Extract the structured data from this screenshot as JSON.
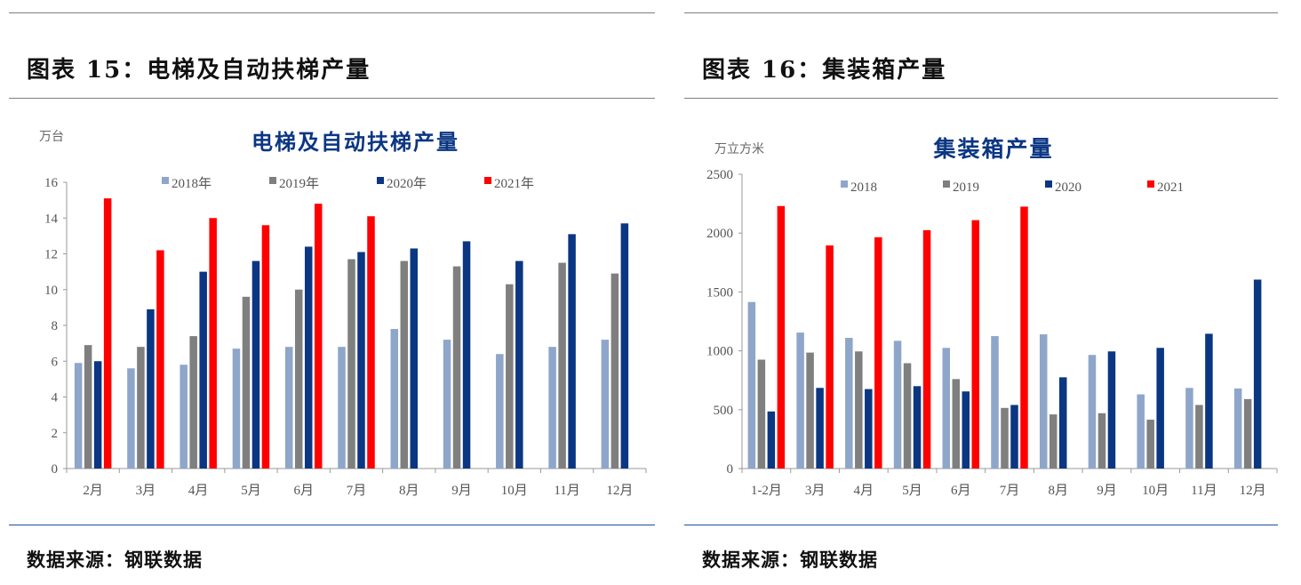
{
  "panels": [
    {
      "header": "图表 15：电梯及自动扶梯产量",
      "source": "数据来源：钢联数据"
    },
    {
      "header": "图表 16：集装箱产量",
      "source": "数据来源：钢联数据"
    }
  ],
  "colors": {
    "2018": "#8ea6c9",
    "2019": "#7f7f7f",
    "2020": "#0b3682",
    "2021": "#ff0000",
    "title": "#0b3682"
  },
  "chart_data": [
    {
      "type": "bar",
      "title": "电梯及自动扶梯产量",
      "ylabel": "万台",
      "xlabel": "",
      "ylim": [
        0,
        16
      ],
      "yticks": [
        0,
        2,
        4,
        6,
        8,
        10,
        12,
        14,
        16
      ],
      "legend": "top",
      "categories": [
        "2月",
        "3月",
        "4月",
        "5月",
        "6月",
        "7月",
        "8月",
        "9月",
        "10月",
        "11月",
        "12月"
      ],
      "series": [
        {
          "name": "2018年",
          "values": [
            5.9,
            5.6,
            5.8,
            6.7,
            6.8,
            6.8,
            7.8,
            7.2,
            6.4,
            6.8,
            7.2
          ]
        },
        {
          "name": "2019年",
          "values": [
            6.9,
            6.8,
            7.4,
            9.6,
            10.0,
            11.7,
            11.6,
            11.3,
            10.3,
            11.5,
            10.9
          ]
        },
        {
          "name": "2020年",
          "values": [
            6.0,
            8.9,
            11.0,
            11.6,
            12.4,
            12.1,
            12.3,
            12.7,
            11.6,
            13.1,
            13.7
          ]
        },
        {
          "name": "2021年",
          "values": [
            15.1,
            12.2,
            14.0,
            13.6,
            14.8,
            14.1,
            null,
            null,
            null,
            null,
            null
          ]
        }
      ]
    },
    {
      "type": "bar",
      "title": "集装箱产量",
      "ylabel": "万立方米",
      "xlabel": "",
      "ylim": [
        0,
        2500
      ],
      "yticks": [
        0,
        500,
        1000,
        1500,
        2000,
        2500
      ],
      "legend": "top",
      "categories": [
        "1-2月",
        "3月",
        "4月",
        "5月",
        "6月",
        "7月",
        "8月",
        "9月",
        "10月",
        "11月",
        "12月"
      ],
      "series": [
        {
          "name": "2018",
          "values": [
            1415,
            1155,
            1110,
            1085,
            1025,
            1125,
            1140,
            965,
            630,
            685,
            680
          ]
        },
        {
          "name": "2019",
          "values": [
            925,
            985,
            995,
            895,
            760,
            515,
            460,
            470,
            415,
            540,
            590
          ]
        },
        {
          "name": "2020",
          "values": [
            485,
            685,
            675,
            700,
            655,
            540,
            775,
            995,
            1025,
            1145,
            1605
          ]
        },
        {
          "name": "2021",
          "values": [
            2230,
            1895,
            1965,
            2025,
            2110,
            2225,
            null,
            null,
            null,
            null,
            null
          ]
        }
      ]
    }
  ]
}
